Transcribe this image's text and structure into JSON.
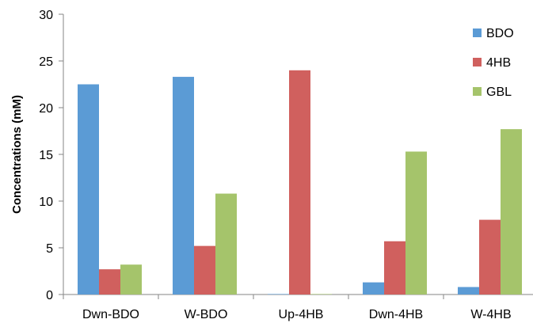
{
  "chart_data": {
    "type": "bar",
    "categories": [
      "Dwn-BDO",
      "W-BDO",
      "Up-4HB",
      "Dwn-4HB",
      "W-4HB"
    ],
    "series": [
      {
        "name": "BDO",
        "color": "#5B9BD5",
        "values": [
          22.5,
          23.3,
          0.05,
          1.3,
          0.8
        ]
      },
      {
        "name": "4HB",
        "color": "#D0605E",
        "values": [
          2.7,
          5.2,
          24.0,
          5.7,
          8.0
        ]
      },
      {
        "name": "GBL",
        "color": "#A5C46B",
        "values": [
          3.2,
          10.8,
          0.05,
          15.3,
          17.7
        ]
      }
    ],
    "title": "",
    "xlabel": "",
    "ylabel": "Concentrations (mM)",
    "ylim": [
      0,
      30
    ],
    "yticks": [
      0,
      5,
      10,
      15,
      20,
      25,
      30
    ],
    "grid": false,
    "legend_position": "top-right"
  }
}
